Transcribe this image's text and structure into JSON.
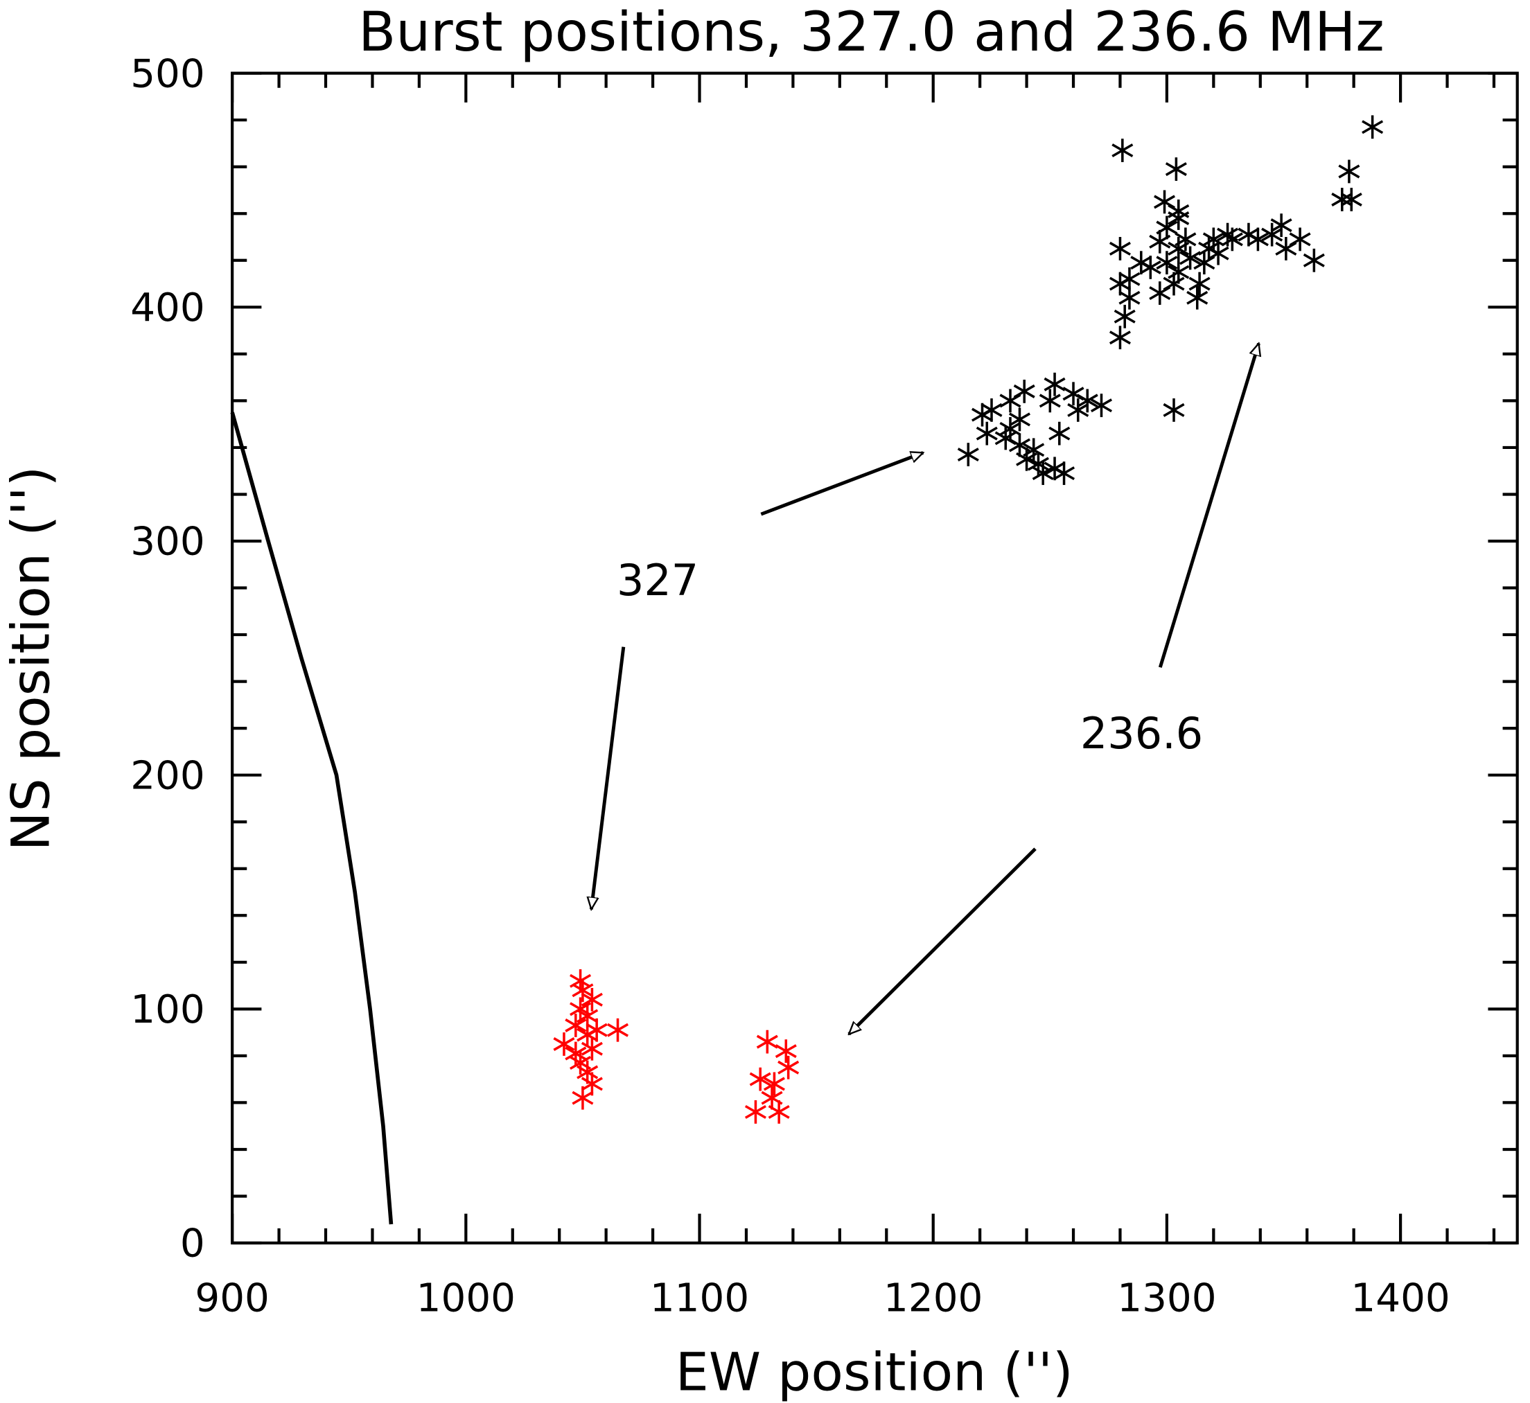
{
  "chart_data": {
    "type": "scatter",
    "title": "Burst positions, 327.0 and 236.6 MHz",
    "x_label": "EW position ('')",
    "y_label": "NS position ('')",
    "xlim": [
      900,
      1450
    ],
    "ylim": [
      0,
      500
    ],
    "xticks": [
      900,
      1000,
      1100,
      1200,
      1300,
      1400
    ],
    "yticks": [
      0,
      100,
      200,
      300,
      400,
      500
    ],
    "annotations": [
      "327",
      "236.6"
    ],
    "series": [
      {
        "color": "#000000",
        "x": [
          1388,
          1281,
          1378,
          1379,
          1375,
          1304,
          1299,
          1305,
          1280,
          1289,
          1284,
          1280,
          1284,
          1282,
          1280,
          1293,
          1297,
          1300,
          1305,
          1308,
          1305,
          1310,
          1314,
          1313,
          1318,
          1322,
          1328,
          1335,
          1339,
          1345,
          1349,
          1357,
          1363,
          1351,
          1300,
          1305,
          1297,
          1303,
          1316,
          1320,
          1326,
          1303,
          1215,
          1225,
          1221,
          1233,
          1231,
          1237,
          1239,
          1240,
          1243,
          1245,
          1252,
          1254,
          1252,
          1256,
          1260,
          1262,
          1266,
          1272,
          1250,
          1223,
          1233,
          1237,
          1247
        ],
        "y": [
          477,
          467,
          458,
          446,
          446,
          459,
          445,
          441,
          425,
          419,
          412,
          410,
          404,
          396,
          387,
          417,
          406,
          419,
          425,
          429,
          415,
          421,
          410,
          404,
          425,
          423,
          429,
          431,
          429,
          431,
          435,
          429,
          420,
          425,
          434,
          438,
          428,
          410,
          419,
          429,
          431,
          356,
          337,
          356,
          354,
          348,
          344,
          341,
          364,
          335,
          339,
          333,
          367,
          346,
          331,
          329,
          363,
          356,
          360,
          358,
          360,
          346,
          360,
          352,
          329
        ]
      },
      {
        "color": "#ff0000",
        "x": [
          1050,
          1049,
          1047,
          1052,
          1054,
          1042,
          1049,
          1052,
          1054,
          1050,
          1052,
          1056,
          1065,
          1047,
          1054,
          1049,
          1129,
          1137,
          1126,
          1132,
          1138,
          1124,
          1134,
          1131
        ],
        "y": [
          108,
          100,
          93,
          89,
          83,
          85,
          77,
          73,
          68,
          62,
          97,
          91,
          91,
          81,
          104,
          112,
          86,
          82,
          70,
          68,
          75,
          56,
          56,
          62
        ]
      }
    ],
    "limb": {
      "x": [
        900,
        915.4,
        929.6,
        944.6,
        952.5,
        959,
        964.6,
        968
      ],
      "y": [
        355,
        300,
        250,
        200,
        150,
        100,
        50,
        8
      ]
    }
  }
}
